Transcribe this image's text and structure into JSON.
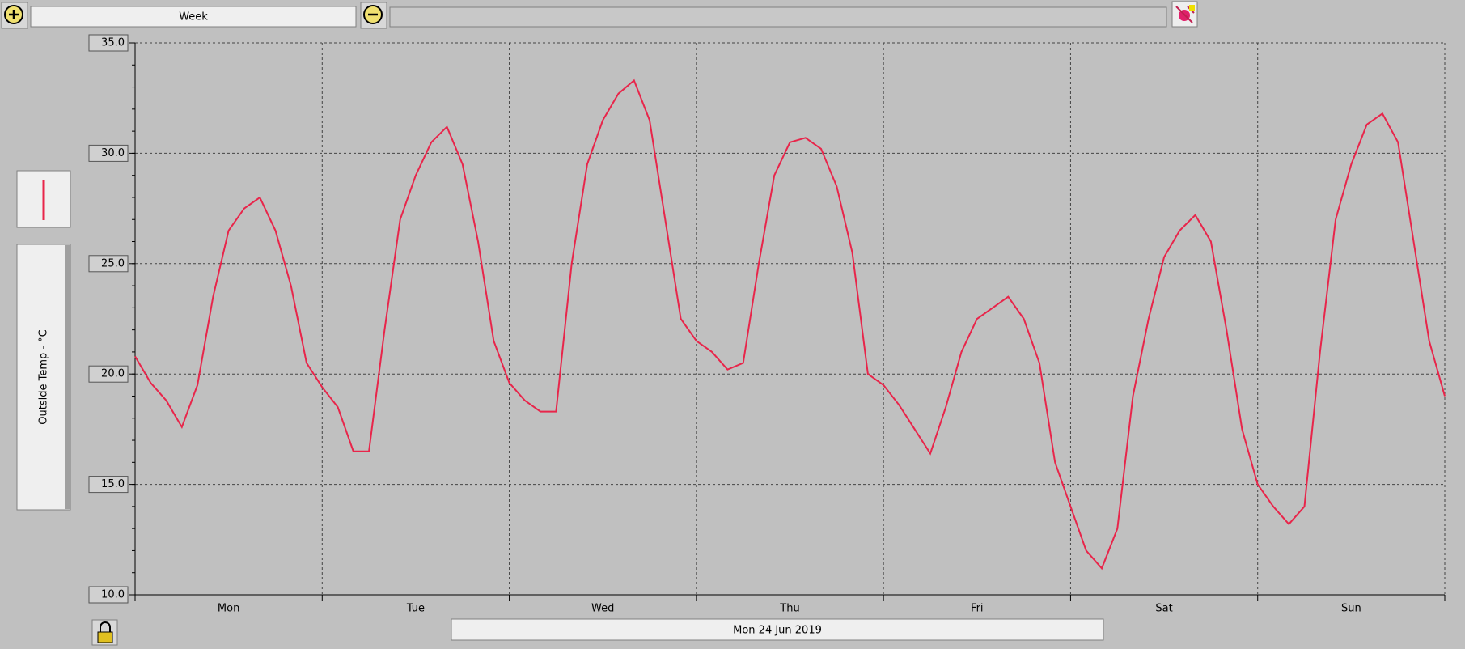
{
  "toolbar": {
    "range": "Week"
  },
  "footer": {
    "date": "Mon 24 Jun 2019"
  },
  "chart_data": {
    "type": "line",
    "categories": [
      null,
      null,
      null,
      null,
      null,
      null,
      "Mon",
      null,
      null,
      null,
      null,
      null,
      null,
      null,
      null,
      null,
      null,
      null,
      "Tue",
      null,
      null,
      null,
      null,
      null,
      null,
      null,
      null,
      null,
      null,
      null,
      "Wed",
      null,
      null,
      null,
      null,
      null,
      null,
      null,
      null,
      null,
      null,
      null,
      "Thu",
      null,
      null,
      null,
      null,
      null,
      null,
      null,
      null,
      null,
      null,
      null,
      "Fri",
      null,
      null,
      null,
      null,
      null,
      null,
      null,
      null,
      null,
      null,
      null,
      "Sat",
      null,
      null,
      null,
      null,
      null,
      null,
      null,
      null,
      null,
      null,
      null,
      "Sun",
      null,
      null,
      null,
      null,
      null,
      null
    ],
    "series": [
      {
        "name": "Outside Temp - °C",
        "color": "#e8254a",
        "values": [
          20.8,
          19.6,
          18.8,
          17.6,
          19.5,
          23.5,
          26.5,
          27.5,
          28.0,
          26.5,
          24.0,
          20.5,
          19.4,
          18.5,
          16.5,
          16.5,
          22.0,
          27.0,
          29.0,
          30.5,
          31.2,
          29.5,
          26.0,
          21.5,
          19.6,
          18.8,
          18.3,
          18.3,
          25.0,
          29.5,
          31.5,
          32.7,
          33.3,
          31.5,
          27.0,
          22.5,
          21.5,
          21.0,
          20.2,
          20.5,
          25.0,
          29.0,
          30.5,
          30.7,
          30.2,
          28.5,
          25.5,
          20.0,
          19.5,
          18.6,
          17.5,
          16.4,
          18.5,
          21.0,
          22.5,
          23.0,
          23.5,
          22.5,
          20.5,
          16.0,
          14.0,
          12.0,
          11.2,
          13.0,
          19.0,
          22.5,
          25.3,
          26.5,
          27.2,
          26.0,
          22.0,
          17.5,
          15.0,
          14.0,
          13.2,
          14.0,
          21.0,
          27.0,
          29.5,
          31.3,
          31.8,
          30.5,
          26.0,
          21.5,
          19.0
        ]
      }
    ],
    "ylim": [
      10,
      35
    ],
    "yticks": [
      {
        "value": 10,
        "label": "10.0"
      },
      {
        "value": 15,
        "label": "15.0"
      },
      {
        "value": 20,
        "label": "20.0"
      },
      {
        "value": 25,
        "label": "25.0"
      },
      {
        "value": 30,
        "label": "30.0"
      },
      {
        "value": 35,
        "label": "35.0"
      }
    ],
    "grid": true
  }
}
